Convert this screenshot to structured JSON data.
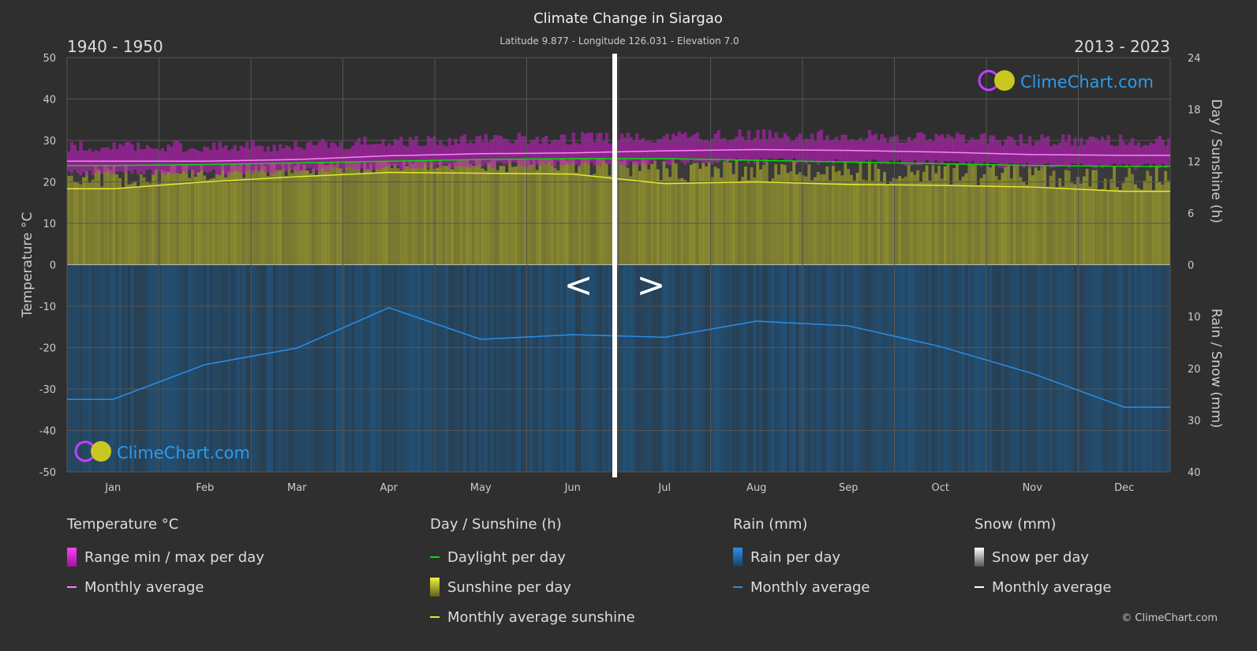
{
  "chart_data": {
    "type": "area",
    "title": "Climate Change in Siargao",
    "subtitle": "Latitude 9.877 - Longitude 126.031 - Elevation 7.0",
    "period_left": "1940 - 1950",
    "period_right": "2013 - 2023",
    "categories": [
      "Jan",
      "Feb",
      "Mar",
      "Apr",
      "May",
      "Jun",
      "Jul",
      "Aug",
      "Sep",
      "Oct",
      "Nov",
      "Dec"
    ],
    "y_left": {
      "label": "Temperature °C",
      "range": [
        -50,
        50
      ],
      "ticks": [
        50,
        40,
        30,
        20,
        10,
        0,
        -10,
        -20,
        -30,
        -40,
        -50
      ]
    },
    "y_right_top": {
      "label": "Day / Sunshine (h)",
      "range": [
        0,
        24
      ],
      "ticks": [
        24,
        18,
        12,
        6,
        0
      ]
    },
    "y_right_bottom": {
      "label": "Rain / Snow (mm)",
      "range": [
        0,
        40
      ],
      "ticks": [
        0,
        10,
        20,
        30,
        40
      ]
    },
    "grid": true,
    "series": [
      {
        "name": "Monthly average",
        "group": "Temperature °C",
        "color": "#ff80ff",
        "values": [
          25.0,
          25.0,
          25.4,
          26.3,
          26.8,
          27.0,
          27.5,
          27.8,
          27.6,
          27.2,
          26.6,
          26.4
        ]
      },
      {
        "name": "Daylight per day",
        "group": "Day / Sunshine (h)",
        "color": "#00e000",
        "values": [
          11.5,
          11.6,
          11.8,
          12.0,
          12.2,
          12.3,
          12.3,
          12.1,
          11.9,
          11.7,
          11.5,
          11.4
        ]
      },
      {
        "name": "Monthly average sunshine",
        "group": "Day / Sunshine (h)",
        "color": "#e8e830",
        "values": [
          8.8,
          9.6,
          10.2,
          10.7,
          10.6,
          10.5,
          9.4,
          9.6,
          9.3,
          9.2,
          9.0,
          8.5
        ]
      },
      {
        "name": "Monthly average",
        "group": "Rain (mm)",
        "color": "#2a8ee8",
        "values": [
          26,
          19.3,
          16.1,
          8.3,
          14.4,
          13.5,
          14,
          10.9,
          11.8,
          15.8,
          21,
          27.5
        ]
      }
    ],
    "colors": {
      "range": "#c020c0",
      "sunshine": "#8c8c30",
      "rain": "#1f5a8a",
      "background": "#2f2f2f"
    }
  },
  "legend": {
    "temp": {
      "title": "Temperature °C",
      "items": [
        "Range min / max per day",
        "Monthly average"
      ]
    },
    "sun": {
      "title": "Day / Sunshine (h)",
      "items": [
        "Daylight per day",
        "Sunshine per day",
        "Monthly average sunshine"
      ]
    },
    "rain": {
      "title": "Rain (mm)",
      "items": [
        "Rain per day",
        "Monthly average"
      ]
    },
    "snow": {
      "title": "Snow (mm)",
      "items": [
        "Snow per day",
        "Monthly average"
      ]
    }
  },
  "brand": "ClimeChart.com",
  "copyright": "© ClimeChart.com",
  "nav": {
    "prev": "<",
    "next": ">"
  }
}
